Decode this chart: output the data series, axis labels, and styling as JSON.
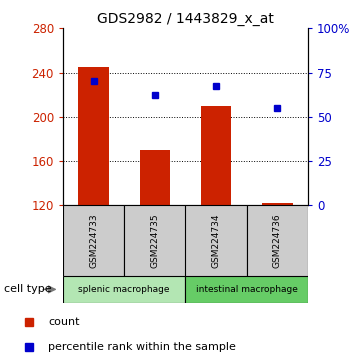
{
  "title": "GDS2982 / 1443829_x_at",
  "samples": [
    "GSM224733",
    "GSM224735",
    "GSM224734",
    "GSM224736"
  ],
  "bar_values": [
    245,
    170,
    210,
    122
  ],
  "bar_bottom": 120,
  "blue_dot_values": [
    232,
    220,
    228,
    208
  ],
  "bar_color": "#cc2200",
  "dot_color": "#0000cc",
  "ylim_left": [
    120,
    280
  ],
  "ylim_right": [
    0,
    100
  ],
  "yticks_left": [
    120,
    160,
    200,
    240,
    280
  ],
  "yticks_right": [
    0,
    25,
    50,
    75,
    100
  ],
  "left_tick_color": "#cc2200",
  "right_tick_color": "#0000cc",
  "groups": [
    {
      "label": "splenic macrophage",
      "indices": [
        0,
        1
      ],
      "color": "#b3e6b3"
    },
    {
      "label": "intestinal macrophage",
      "indices": [
        2,
        3
      ],
      "color": "#66cc66"
    }
  ],
  "cell_type_label": "cell type",
  "legend_items": [
    {
      "color": "#cc2200",
      "label": "count"
    },
    {
      "color": "#0000cc",
      "label": "percentile rank within the sample"
    }
  ],
  "grid_color": "#000000",
  "sample_box_color": "#cccccc",
  "bar_width": 0.5
}
